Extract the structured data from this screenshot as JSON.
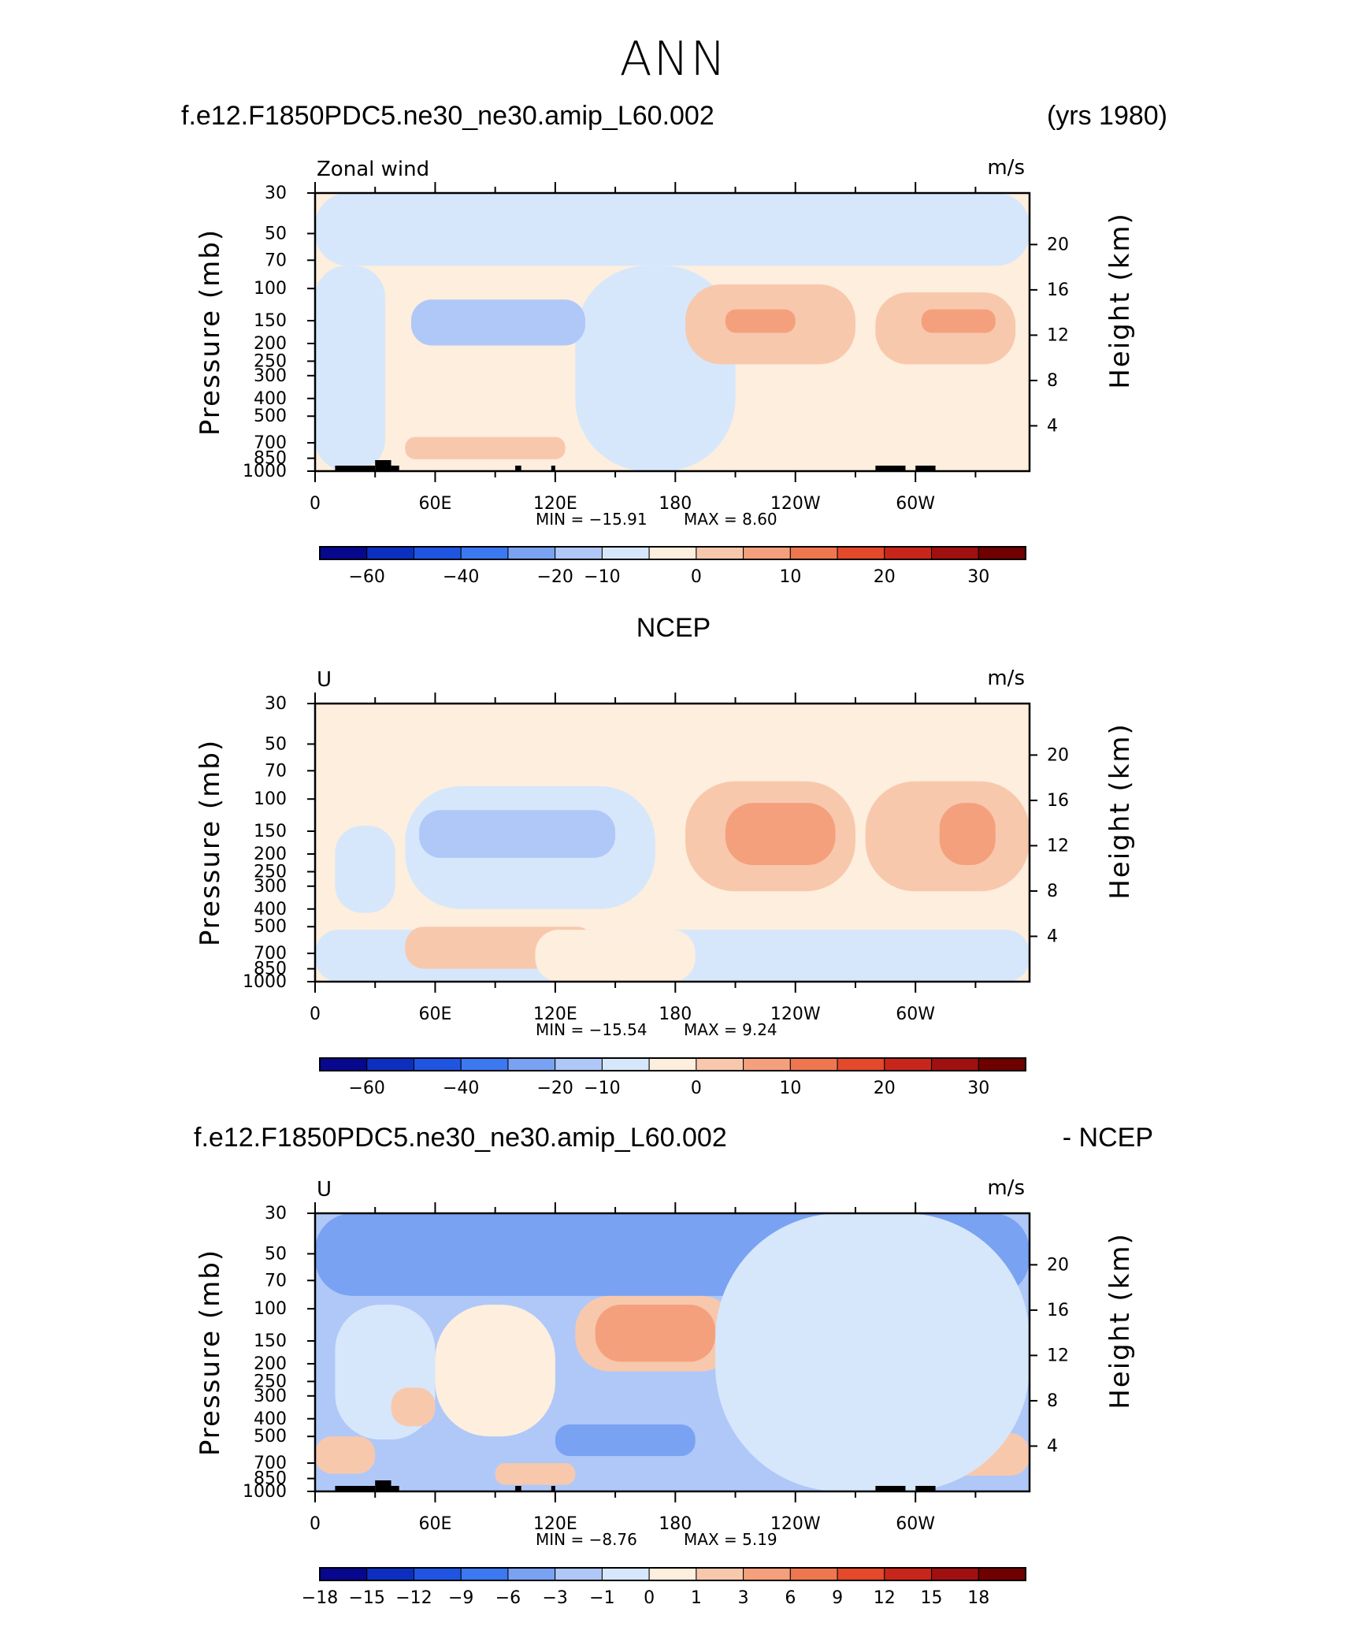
{
  "figure": {
    "title": "ANN",
    "header1_left": "f.e12.F1850PDC5.ne30_ne30.amip_L60.002",
    "header1_right": "(yrs 1980)",
    "header2_center": "NCEP",
    "header3_left": "f.e12.F1850PDC5.ne30_ne30.amip_L60.002",
    "header3_right": "- NCEP"
  },
  "colors": {
    "std_scale": [
      "#08088f",
      "#0d2fbf",
      "#1f55e0",
      "#3c78f0",
      "#7aa2f2",
      "#afc8f8",
      "#d6e7fb",
      "#fdeedd",
      "#f8c8ad",
      "#f5a07d",
      "#ee7750",
      "#e3492a",
      "#c8261a",
      "#a01010",
      "#6e0000"
    ],
    "diff_scale": [
      "#08088f",
      "#0d2fbf",
      "#1f55e0",
      "#3c78f0",
      "#7aa2f2",
      "#afc8f8",
      "#d6e7fb",
      "#fdeedd",
      "#f8c8ad",
      "#f5a07d",
      "#ee7750",
      "#e3492a",
      "#c8261a",
      "#a01010",
      "#6e0000"
    ],
    "land": "#000000"
  },
  "chart_data": [
    {
      "type": "heatmap",
      "panel_label": "Zonal wind",
      "units": "m/s",
      "ylabel": "Pressure (mb)",
      "ylabel_right": "Height (km)",
      "y_ticks": [
        "30",
        "50",
        "70",
        "100",
        "150",
        "200",
        "250",
        "300",
        "400",
        "500",
        "700",
        "850",
        "1000"
      ],
      "y_values": [
        30,
        50,
        70,
        100,
        150,
        200,
        250,
        300,
        400,
        500,
        700,
        850,
        1000
      ],
      "ylim": [
        1000,
        30
      ],
      "y2_ticks": [
        "20",
        "16",
        "12",
        "8",
        "4"
      ],
      "y2_values": [
        20,
        16,
        12,
        8,
        4
      ],
      "x_ticks": [
        "0",
        "60E",
        "120E",
        "180",
        "120W",
        "60W"
      ],
      "x_values": [
        0,
        60,
        120,
        180,
        240,
        300
      ],
      "xlim": [
        0,
        357
      ],
      "min_label": "MIN = −15.91",
      "max_label": "MAX =    8.60",
      "min": -15.91,
      "max": 8.6,
      "colorbar_labels": [
        "−60",
        "−40",
        "−20",
        "−10",
        "0",
        "10",
        "20",
        "30"
      ],
      "colorbar_levels": [
        -60,
        -40,
        -20,
        -10,
        0,
        10,
        20,
        30
      ],
      "levels": [
        -70,
        -60,
        -50,
        -40,
        -30,
        -20,
        -15,
        -10,
        -5,
        0,
        5,
        10,
        15,
        20,
        25,
        30,
        35
      ],
      "regions": [
        {
          "level": 0,
          "lon": [
            0,
            357
          ],
          "p": [
            30,
            1000
          ]
        },
        {
          "level": -1,
          "lon": [
            0,
            357
          ],
          "p": [
            30,
            75
          ]
        },
        {
          "level": -1,
          "lon": [
            130,
            210
          ],
          "p": [
            75,
            1000
          ]
        },
        {
          "level": -1,
          "lon": [
            0,
            35
          ],
          "p": [
            75,
            1000
          ]
        },
        {
          "level": -2,
          "lon": [
            48,
            135
          ],
          "p": [
            115,
            205
          ]
        },
        {
          "level": 1,
          "lon": [
            185,
            270
          ],
          "p": [
            95,
            260
          ]
        },
        {
          "level": 1,
          "lon": [
            280,
            350
          ],
          "p": [
            105,
            260
          ]
        },
        {
          "level": 1,
          "lon": [
            45,
            125
          ],
          "p": [
            650,
            860
          ]
        },
        {
          "level": 2,
          "lon": [
            205,
            240
          ],
          "p": [
            130,
            175
          ]
        },
        {
          "level": 2,
          "lon": [
            303,
            340
          ],
          "p": [
            130,
            175
          ]
        }
      ],
      "land": [
        [
          10,
          30
        ],
        [
          30,
          38
        ],
        [
          38,
          42
        ],
        [
          100,
          103
        ],
        [
          118,
          120
        ],
        [
          280,
          295
        ],
        [
          300,
          310
        ]
      ]
    },
    {
      "type": "heatmap",
      "panel_label": "U",
      "units": "m/s",
      "ylabel": "Pressure (mb)",
      "ylabel_right": "Height (km)",
      "y_ticks": [
        "30",
        "50",
        "70",
        "100",
        "150",
        "200",
        "250",
        "300",
        "400",
        "500",
        "700",
        "850",
        "1000"
      ],
      "y_values": [
        30,
        50,
        70,
        100,
        150,
        200,
        250,
        300,
        400,
        500,
        700,
        850,
        1000
      ],
      "ylim": [
        1000,
        30
      ],
      "y2_ticks": [
        "20",
        "16",
        "12",
        "8",
        "4"
      ],
      "y2_values": [
        20,
        16,
        12,
        8,
        4
      ],
      "x_ticks": [
        "0",
        "60E",
        "120E",
        "180",
        "120W",
        "60W"
      ],
      "x_values": [
        0,
        60,
        120,
        180,
        240,
        300
      ],
      "xlim": [
        0,
        357
      ],
      "min_label": "MIN = −15.54",
      "max_label": "MAX =    9.24",
      "min": -15.54,
      "max": 9.24,
      "colorbar_labels": [
        "−60",
        "−40",
        "−20",
        "−10",
        "0",
        "10",
        "20",
        "30"
      ],
      "colorbar_levels": [
        -60,
        -40,
        -20,
        -10,
        0,
        10,
        20,
        30
      ],
      "levels": [
        -70,
        -60,
        -50,
        -40,
        -30,
        -20,
        -15,
        -10,
        -5,
        0,
        5,
        10,
        15,
        20,
        25,
        30,
        35
      ],
      "regions": [
        {
          "level": 0,
          "lon": [
            0,
            357
          ],
          "p": [
            30,
            1000
          ]
        },
        {
          "level": -1,
          "lon": [
            45,
            170
          ],
          "p": [
            85,
            400
          ]
        },
        {
          "level": -1,
          "lon": [
            10,
            40
          ],
          "p": [
            140,
            420
          ]
        },
        {
          "level": -1,
          "lon": [
            0,
            357
          ],
          "p": [
            520,
            1000
          ]
        },
        {
          "level": -2,
          "lon": [
            52,
            150
          ],
          "p": [
            115,
            210
          ]
        },
        {
          "level": 1,
          "lon": [
            185,
            270
          ],
          "p": [
            80,
            320
          ]
        },
        {
          "level": 1,
          "lon": [
            275,
            357
          ],
          "p": [
            80,
            320
          ]
        },
        {
          "level": 2,
          "lon": [
            205,
            260
          ],
          "p": [
            105,
            230
          ]
        },
        {
          "level": 2,
          "lon": [
            312,
            340
          ],
          "p": [
            105,
            230
          ]
        },
        {
          "level": 1,
          "lon": [
            45,
            140
          ],
          "p": [
            500,
            850
          ]
        },
        {
          "level": 0,
          "lon": [
            110,
            190
          ],
          "p": [
            520,
            1000
          ]
        }
      ],
      "land": []
    },
    {
      "type": "heatmap",
      "panel_label": "U",
      "units": "m/s",
      "ylabel": "Pressure (mb)",
      "ylabel_right": "Height (km)",
      "y_ticks": [
        "30",
        "50",
        "70",
        "100",
        "150",
        "200",
        "250",
        "300",
        "400",
        "500",
        "700",
        "850",
        "1000"
      ],
      "y_values": [
        30,
        50,
        70,
        100,
        150,
        200,
        250,
        300,
        400,
        500,
        700,
        850,
        1000
      ],
      "ylim": [
        1000,
        30
      ],
      "y2_ticks": [
        "20",
        "16",
        "12",
        "8",
        "4"
      ],
      "y2_values": [
        20,
        16,
        12,
        8,
        4
      ],
      "x_ticks": [
        "0",
        "60E",
        "120E",
        "180",
        "120W",
        "60W"
      ],
      "x_values": [
        0,
        60,
        120,
        180,
        240,
        300
      ],
      "xlim": [
        0,
        357
      ],
      "min_label": "MIN =    −8.76",
      "max_label": "MAX =    5.19",
      "min": -8.76,
      "max": 5.19,
      "colorbar_labels": [
        "−18",
        "−15",
        "−12",
        "−9",
        "−6",
        "−3",
        "−1",
        "0",
        "1",
        "3",
        "6",
        "9",
        "12",
        "15",
        "18"
      ],
      "colorbar_levels": [
        -18,
        -15,
        -12,
        -9,
        -6,
        -3,
        -1,
        0,
        1,
        3,
        6,
        9,
        12,
        15,
        18
      ],
      "regions": [
        {
          "level": -2,
          "lon": [
            0,
            357
          ],
          "p": [
            30,
            1000
          ]
        },
        {
          "level": -3,
          "lon": [
            0,
            357
          ],
          "p": [
            30,
            85
          ]
        },
        {
          "level": -4,
          "lon": [
            235,
            320
          ],
          "p": [
            62,
            78
          ]
        },
        {
          "level": -1,
          "lon": [
            10,
            60
          ],
          "p": [
            95,
            520
          ]
        },
        {
          "level": 0,
          "lon": [
            60,
            120
          ],
          "p": [
            95,
            500
          ]
        },
        {
          "level": 1,
          "lon": [
            130,
            210
          ],
          "p": [
            85,
            220
          ]
        },
        {
          "level": 2,
          "lon": [
            140,
            200
          ],
          "p": [
            95,
            195
          ]
        },
        {
          "level": -3,
          "lon": [
            220,
            280
          ],
          "p": [
            165,
            380
          ]
        },
        {
          "level": 1,
          "lon": [
            270,
            320
          ],
          "p": [
            125,
            420
          ]
        },
        {
          "level": 2,
          "lon": [
            280,
            310
          ],
          "p": [
            135,
            200
          ]
        },
        {
          "level": 1,
          "lon": [
            38,
            60
          ],
          "p": [
            270,
            440
          ]
        },
        {
          "level": -3,
          "lon": [
            120,
            190
          ],
          "p": [
            430,
            640
          ]
        },
        {
          "level": 1,
          "lon": [
            0,
            30
          ],
          "p": [
            500,
            800
          ]
        },
        {
          "level": 1,
          "lon": [
            310,
            357
          ],
          "p": [
            480,
            820
          ]
        },
        {
          "level": 1,
          "lon": [
            90,
            130
          ],
          "p": [
            700,
            920
          ]
        },
        {
          "level": -1,
          "lon": [
            200,
            357
          ],
          "p": [
            30,
            1000
          ],
          "p_sub": [
            520,
            1000
          ]
        }
      ],
      "land": [
        [
          10,
          30
        ],
        [
          30,
          38
        ],
        [
          38,
          42
        ],
        [
          100,
          103
        ],
        [
          118,
          120
        ],
        [
          280,
          295
        ],
        [
          300,
          310
        ]
      ]
    }
  ]
}
